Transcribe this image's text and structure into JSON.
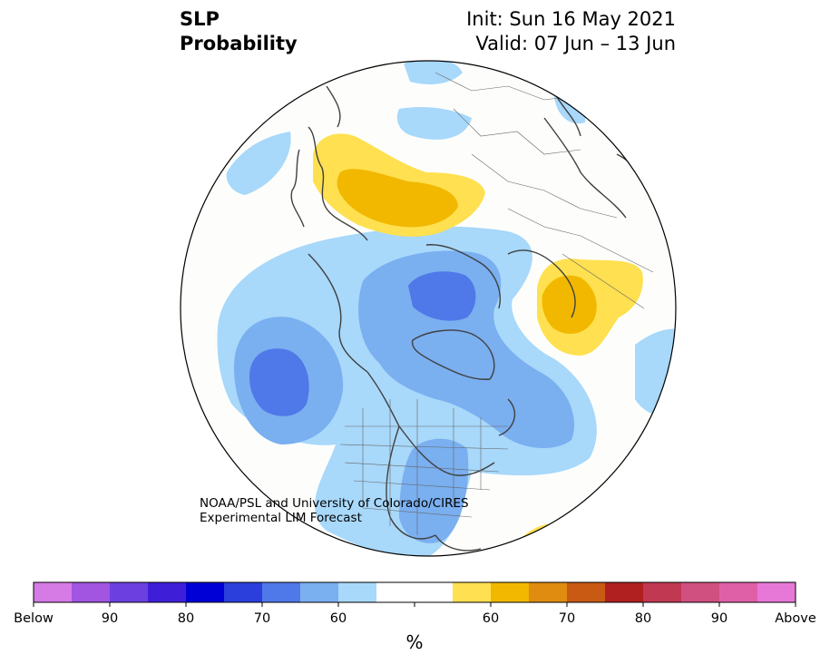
{
  "title": {
    "variable": "SLP",
    "kind": "Probability",
    "init": "Init: Sun 16 May 2021",
    "valid": "Valid: 07 Jun – 13 Jun"
  },
  "credit": {
    "line1": "NOAA/PSL and University of Colorado/CIRES",
    "line2": "Experimental LIM Forecast"
  },
  "colorbar": {
    "unit": "%",
    "colors": [
      "#d67ae6",
      "#a155e0",
      "#6b3fe0",
      "#3f1ed8",
      "#0000d6",
      "#2a3fdc",
      "#4f78e8",
      "#7aaff0",
      "#a8d8fa",
      "#ffffff",
      "#ffffff",
      "#ffe050",
      "#f2b800",
      "#e08c10",
      "#c85a14",
      "#b02020",
      "#c03852",
      "#d05080",
      "#e060a8",
      "#e878d8"
    ],
    "labels": [
      "Below",
      "90",
      "80",
      "70",
      "60",
      "60",
      "70",
      "80",
      "90",
      "Above"
    ]
  },
  "map_colors": {
    "light_blue": "#a8d8fa",
    "mid_blue": "#7aaff0",
    "dark_blue": "#4f78e8",
    "light_yellow": "#ffe050",
    "gold": "#f2b800",
    "coast": "#404040",
    "border": "#555555"
  },
  "icons": [
    "north-polar-map",
    "colorbar"
  ]
}
